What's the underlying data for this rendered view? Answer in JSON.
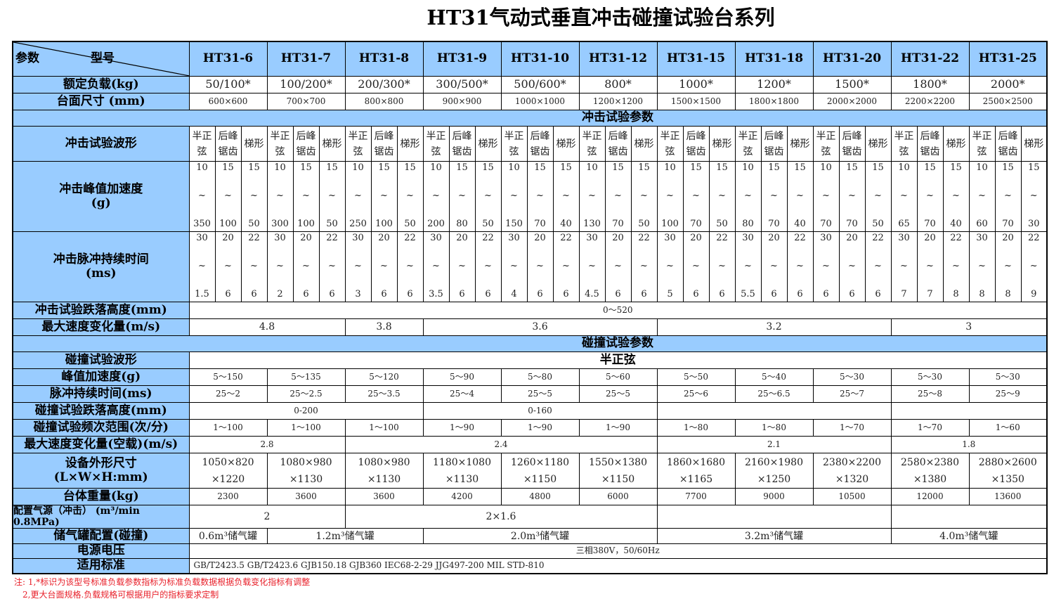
{
  "title": "HT31气动式垂直冲击碰撞试验台系列",
  "corner": {
    "param": "参数",
    "model": "型号"
  },
  "models": [
    "HT31-6",
    "HT31-7",
    "HT31-8",
    "HT31-9",
    "HT31-10",
    "HT31-12",
    "HT31-15",
    "HT31-18",
    "HT31-20",
    "HT31-22",
    "HT31-25"
  ],
  "rated_load": {
    "label": "额定负载(kg)",
    "values": [
      "50/100*",
      "100/200*",
      "200/300*",
      "300/500*",
      "500/600*",
      "800*",
      "1000*",
      "1200*",
      "1500*",
      "1800*",
      "2000*"
    ]
  },
  "table_size": {
    "label": "台面尺寸 (mm)",
    "values": [
      "600×600",
      "700×700",
      "800×800",
      "900×900",
      "1000×1000",
      "1200×1200",
      "1500×1500",
      "1800×1800",
      "2000×2000",
      "2200×2200",
      "2500×2500"
    ]
  },
  "shock_section": "冲击试验参数",
  "shock_waveform": {
    "label": "冲击试验波形",
    "subs": [
      "半正\n弦",
      "后峰\n锯齿",
      "梯形"
    ]
  },
  "shock_accel": {
    "label": "冲击峰值加速度\n(g)",
    "tilde": "~",
    "top": [
      "10",
      "15",
      "15"
    ],
    "bottom": [
      [
        "350",
        "100",
        "50"
      ],
      [
        "300",
        "100",
        "50"
      ],
      [
        "250",
        "100",
        "50"
      ],
      [
        "200",
        "80",
        "50"
      ],
      [
        "150",
        "70",
        "40"
      ],
      [
        "130",
        "70",
        "50"
      ],
      [
        "100",
        "70",
        "50"
      ],
      [
        "80",
        "70",
        "40"
      ],
      [
        "70",
        "70",
        "50"
      ],
      [
        "65",
        "70",
        "40"
      ],
      [
        "60",
        "70",
        "30"
      ]
    ]
  },
  "shock_pulse": {
    "label": "冲击脉冲持续时间\n(ms)",
    "tilde": "~",
    "top": [
      "30",
      "20",
      "22"
    ],
    "bottom": [
      [
        "1.5",
        "6",
        "6"
      ],
      [
        "2",
        "6",
        "6"
      ],
      [
        "3",
        "6",
        "6"
      ],
      [
        "3.5",
        "6",
        "6"
      ],
      [
        "4",
        "6",
        "6"
      ],
      [
        "4.5",
        "6",
        "6"
      ],
      [
        "5",
        "6",
        "6"
      ],
      [
        "5.5",
        "6",
        "6"
      ],
      [
        "6",
        "6",
        "6"
      ],
      [
        "7",
        "7",
        "8"
      ],
      [
        "8",
        "8",
        "9"
      ]
    ]
  },
  "shock_drop": {
    "label": "冲击试验跌落高度(mm)",
    "values": [
      "0～520"
    ]
  },
  "shock_speed": {
    "label": "最大速度变化量(m/s)",
    "values": [
      "4.8",
      "3.8",
      "3.6",
      "3.2",
      "3"
    ]
  },
  "bump_section": "碰撞试验参数",
  "bump_waveform": {
    "label": "碰撞试验波形",
    "values": [
      "半正弦"
    ]
  },
  "bump_accel": {
    "label": "峰值加速度(g)",
    "values": [
      "5～150",
      "5～135",
      "5～120",
      "5～90",
      "5～80",
      "5～60",
      "5～50",
      "5～40",
      "5～30",
      "5～30",
      "5～30"
    ]
  },
  "bump_pulse": {
    "label": "脉冲持续时间(ms)",
    "values": [
      "25～2",
      "25～2.5",
      "25～3.5",
      "25～4",
      "25～5",
      "25～5",
      "25～6",
      "25～6.5",
      "25～7",
      "25～8",
      "25～9"
    ]
  },
  "bump_drop": {
    "label": "碰撞试验跌落高度(mm)",
    "values": [
      "0-200",
      "0-160",
      "",
      ""
    ]
  },
  "bump_freq": {
    "label": "碰撞试验频次范围(次/分)",
    "values": [
      "1～100",
      "1～100",
      "1～100",
      "1～90",
      "1～90",
      "1～90",
      "1～80",
      "1～80",
      "1～70",
      "1～70",
      "1～60"
    ]
  },
  "bump_speed": {
    "label": "最大速度变化量(空载)(m/s)",
    "values": [
      "2.8",
      "2.4",
      "2.1",
      "1.8"
    ]
  },
  "dimensions": {
    "label": "设备外形尺寸\n(L×W×H:mm)",
    "values": [
      "1050×820\n×1220",
      "1080×980\n×1130",
      "1080×980\n×1130",
      "1180×1080\n×1130",
      "1260×1180\n×1150",
      "1550×1380\n×1150",
      "1860×1680\n×1165",
      "2160×1980\n×1250",
      "2380×2200\n×1320",
      "2580×2380\n×1380",
      "2880×2600\n×1350"
    ]
  },
  "weight": {
    "label": "台体重量(kg)",
    "values": [
      "2300",
      "3600",
      "3600",
      "4200",
      "4800",
      "6000",
      "7700",
      "9000",
      "10500",
      "12000",
      "13600"
    ]
  },
  "air_source": {
    "label": "配置气源（冲击） (m³/min 0.8MPa)",
    "values": [
      "2",
      "2×1.6",
      "",
      ""
    ]
  },
  "air_tank": {
    "label": "储气罐配置(碰撞)",
    "values": [
      "0.6m³储气罐",
      "1.2m³储气罐",
      "2.0m³储气罐",
      "3.2m³储气罐",
      "4.0m³储气罐"
    ]
  },
  "voltage": {
    "label": "电源电压",
    "values": [
      "三相380V，50/60Hz"
    ]
  },
  "standards": {
    "label": "适用标准",
    "values": [
      "GB/T2423.5  GB/T2423.6  GJB150.18  GJB360  IEC68-2-29  JJG497-200  MIL STD-810"
    ]
  },
  "notes": [
    "注:  1,*标识为该型号标准负载参数指标为标准负载数据根据负载变化指标有调整",
    "2,更大台面规格.负载规格可根据用户的指标要求定制"
  ],
  "colors": {
    "header_bg": "#99ccff",
    "note": "#e8202a"
  }
}
